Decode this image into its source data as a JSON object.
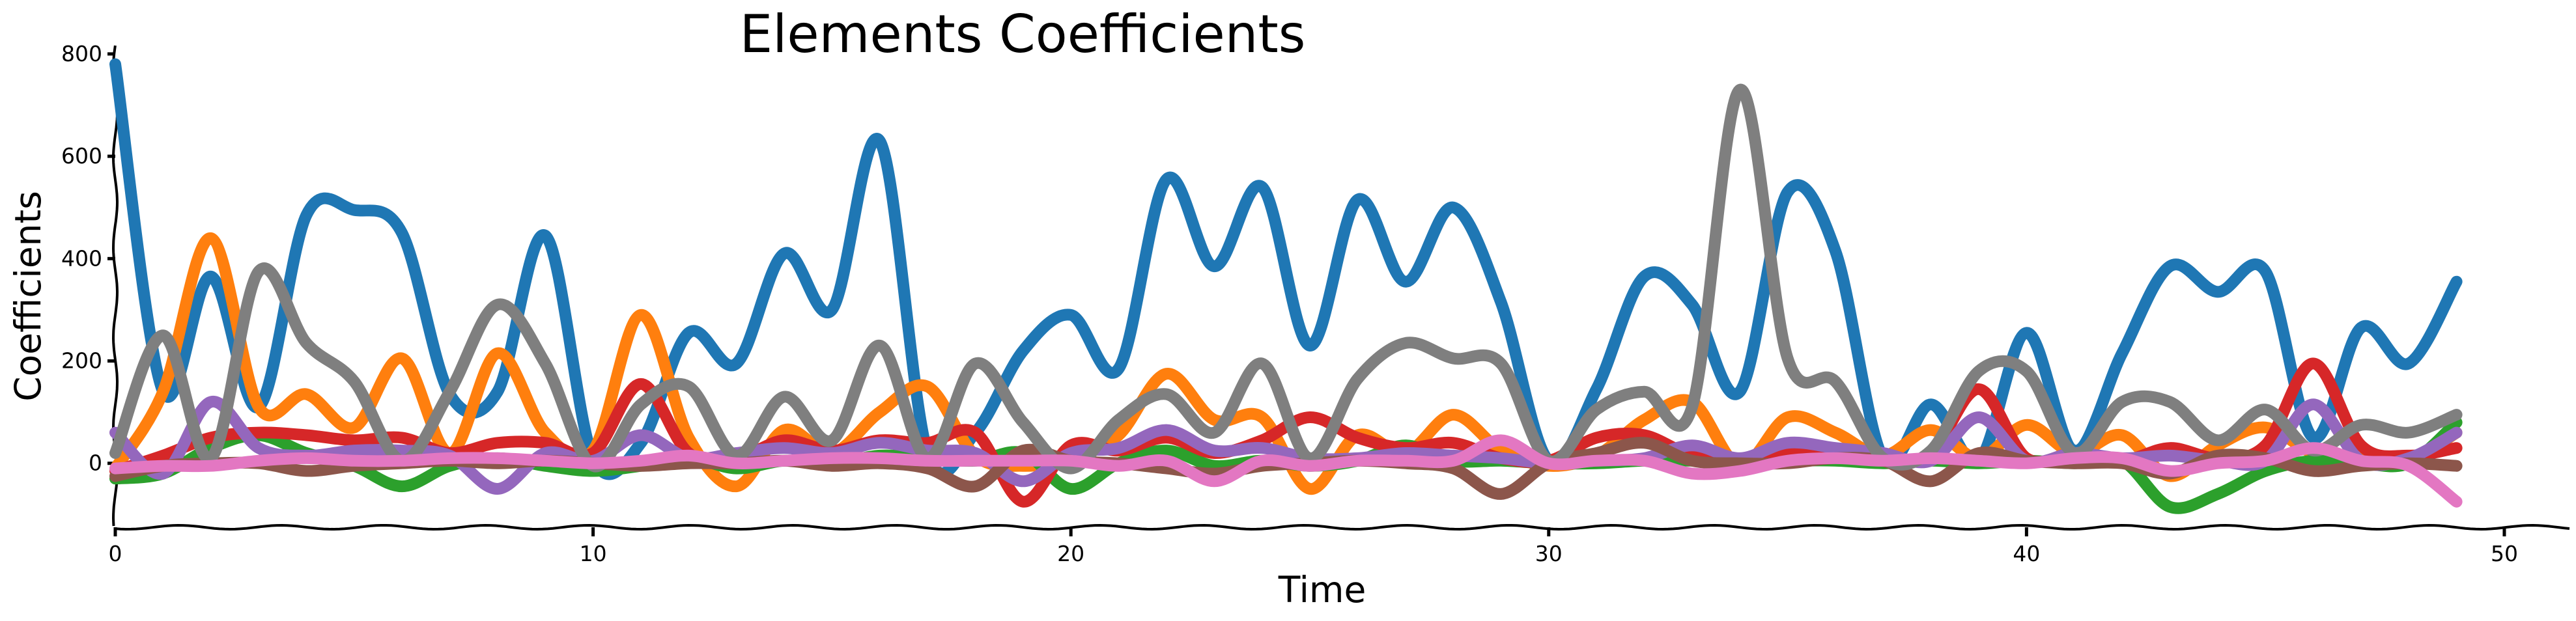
{
  "chart_data": {
    "type": "line",
    "title": "Elements Coefficients",
    "xlabel": "Time",
    "ylabel": "Coefficients",
    "xlim": [
      0,
      51.5
    ],
    "ylim": [
      -125,
      810
    ],
    "xticks": [
      0,
      10,
      20,
      30,
      40,
      50
    ],
    "yticks": [
      0,
      200,
      400,
      600,
      800
    ],
    "grid": false,
    "legend": "none",
    "x": [
      0,
      1,
      2,
      3,
      4,
      5,
      6,
      7,
      8,
      9,
      10,
      11,
      12,
      13,
      14,
      15,
      16,
      17,
      18,
      19,
      20,
      21,
      22,
      23,
      24,
      25,
      26,
      27,
      28,
      29,
      30,
      31,
      32,
      33,
      34,
      35,
      36,
      37,
      38,
      39,
      40,
      41,
      42,
      43,
      44,
      45,
      46,
      47,
      48,
      49
    ],
    "series": [
      {
        "color": "#1f77b4",
        "values": [
          780,
          140,
          365,
          110,
          485,
          495,
          450,
          135,
          140,
          445,
          10,
          40,
          255,
          195,
          410,
          300,
          630,
          20,
          60,
          220,
          290,
          185,
          555,
          385,
          540,
          230,
          515,
          355,
          500,
          315,
          5,
          145,
          365,
          310,
          140,
          530,
          415,
          10,
          115,
          5,
          255,
          25,
          215,
          385,
          335,
          375,
          50,
          265,
          195,
          355
        ]
      },
      {
        "color": "#ff7f0e",
        "values": [
          -10,
          140,
          440,
          110,
          135,
          70,
          205,
          20,
          215,
          60,
          25,
          290,
          50,
          -45,
          65,
          20,
          100,
          150,
          15,
          -5,
          10,
          55,
          175,
          85,
          90,
          -50,
          55,
          20,
          95,
          25,
          -5,
          15,
          85,
          120,
          -5,
          90,
          60,
          15,
          65,
          10,
          75,
          20,
          55,
          -25,
          35,
          70,
          20,
          10,
          5,
          60
        ]
      },
      {
        "color": "#2ca02c",
        "values": [
          -30,
          -20,
          30,
          55,
          20,
          -5,
          -45,
          -5,
          10,
          -5,
          -15,
          -5,
          10,
          -10,
          5,
          0,
          15,
          10,
          5,
          20,
          -50,
          0,
          25,
          -5,
          5,
          -5,
          5,
          35,
          5,
          5,
          0,
          0,
          5,
          5,
          0,
          5,
          5,
          0,
          5,
          0,
          5,
          0,
          5,
          -85,
          -60,
          -15,
          5,
          0,
          0,
          80
        ]
      },
      {
        "color": "#d62728",
        "values": [
          -15,
          15,
          50,
          60,
          55,
          45,
          50,
          20,
          40,
          40,
          20,
          155,
          20,
          10,
          45,
          25,
          45,
          40,
          60,
          -75,
          35,
          25,
          50,
          20,
          45,
          90,
          50,
          30,
          40,
          10,
          5,
          50,
          55,
          15,
          5,
          20,
          25,
          5,
          20,
          145,
          10,
          20,
          5,
          30,
          10,
          35,
          195,
          35,
          15,
          30
        ]
      },
      {
        "color": "#9467bd",
        "values": [
          60,
          -20,
          120,
          30,
          15,
          25,
          25,
          15,
          -50,
          20,
          5,
          55,
          10,
          20,
          30,
          20,
          40,
          25,
          20,
          -35,
          20,
          30,
          65,
          25,
          30,
          10,
          10,
          20,
          15,
          10,
          0,
          5,
          10,
          35,
          10,
          40,
          30,
          20,
          5,
          90,
          5,
          20,
          10,
          15,
          5,
          5,
          115,
          5,
          10,
          60
        ]
      },
      {
        "color": "#8c564b",
        "values": [
          -25,
          -5,
          0,
          0,
          -15,
          -5,
          0,
          5,
          0,
          5,
          0,
          -5,
          0,
          0,
          5,
          -5,
          0,
          -10,
          -45,
          25,
          5,
          0,
          -10,
          -20,
          -5,
          0,
          5,
          0,
          -10,
          -60,
          0,
          20,
          40,
          5,
          0,
          0,
          10,
          5,
          -35,
          20,
          5,
          0,
          0,
          -20,
          15,
          10,
          -15,
          -5,
          0,
          -5
        ]
      },
      {
        "color": "#7f7f7f",
        "values": [
          20,
          250,
          10,
          375,
          235,
          160,
          5,
          140,
          310,
          195,
          -5,
          115,
          150,
          15,
          130,
          45,
          230,
          10,
          195,
          80,
          -10,
          85,
          135,
          60,
          195,
          10,
          165,
          235,
          205,
          195,
          5,
          105,
          140,
          110,
          730,
          205,
          160,
          10,
          25,
          180,
          180,
          20,
          120,
          120,
          45,
          105,
          25,
          75,
          60,
          95
        ]
      },
      {
        "color": "#e377c2",
        "values": [
          -10,
          -5,
          -5,
          5,
          10,
          5,
          5,
          10,
          10,
          5,
          0,
          5,
          15,
          0,
          5,
          10,
          10,
          5,
          5,
          5,
          5,
          -5,
          5,
          -35,
          5,
          -5,
          5,
          5,
          5,
          45,
          0,
          5,
          5,
          -20,
          -15,
          5,
          10,
          5,
          10,
          5,
          0,
          10,
          10,
          -15,
          0,
          5,
          30,
          5,
          -5,
          -75
        ]
      }
    ]
  }
}
